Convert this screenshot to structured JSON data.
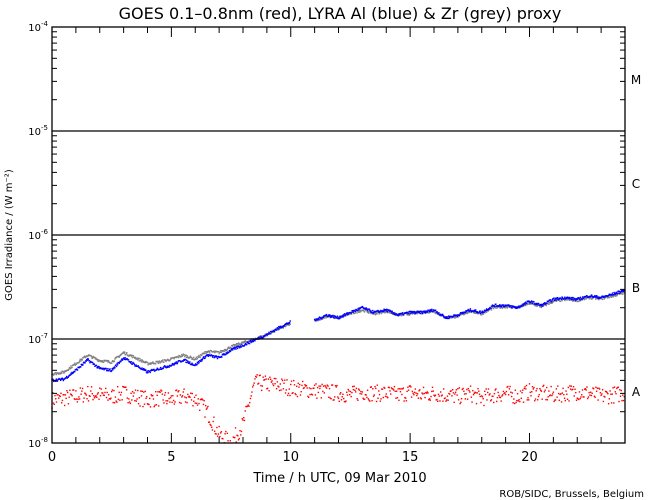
{
  "chart_data": {
    "type": "scatter",
    "title": "GOES 0.1–0.8nm (red), LYRA Al (blue) & Zr (grey) proxy",
    "xlabel": "Time / h UTC, 09 Mar 2010",
    "ylabel": "GOES Irradiance / (W m⁻²)",
    "credit": "ROB/SIDC, Brussels, Belgium",
    "xlim": [
      0,
      24
    ],
    "ylim": [
      1e-08,
      0.0001
    ],
    "yscale": "log",
    "x_ticks": [
      "0",
      "5",
      "10",
      "15",
      "20"
    ],
    "y_ticks": [
      {
        "base": "10",
        "exp": "-4"
      },
      {
        "base": "10",
        "exp": "-5"
      },
      {
        "base": "10",
        "exp": "-6"
      },
      {
        "base": "10",
        "exp": "-7"
      },
      {
        "base": "10",
        "exp": "-8"
      }
    ],
    "flare_classes": [
      "M",
      "C",
      "B",
      "A"
    ],
    "x": [
      0,
      0.5,
      1,
      1.5,
      2,
      2.5,
      3,
      3.5,
      4,
      4.5,
      5,
      5.5,
      6,
      6.5,
      7,
      7.5,
      8,
      8.5,
      9,
      9.5,
      10,
      10.5,
      11,
      11.5,
      12,
      12.5,
      13,
      13.5,
      14,
      14.5,
      15,
      15.5,
      16,
      16.5,
      17,
      17.5,
      18,
      18.5,
      19,
      19.5,
      20,
      20.5,
      21,
      21.5,
      22,
      22.5,
      23,
      23.5,
      24
    ],
    "series": [
      {
        "name": "GOES 0.1-0.8nm",
        "color": "#ff0000",
        "values": [
          2.6e-08,
          2.7e-08,
          2.8e-08,
          3e-08,
          2.9e-08,
          2.8e-08,
          3e-08,
          2.8e-08,
          2.6e-08,
          2.7e-08,
          2.6e-08,
          2.8e-08,
          2.7e-08,
          2e-08,
          1.2e-08,
          1e-08,
          1.5e-08,
          3.8e-08,
          3.7e-08,
          3.6e-08,
          3.4e-08,
          3.3e-08,
          3.2e-08,
          3.1e-08,
          3e-08,
          2.9e-08,
          3.1e-08,
          3e-08,
          3e-08,
          2.9e-08,
          3.1e-08,
          2.9e-08,
          3e-08,
          2.9e-08,
          2.8e-08,
          3e-08,
          2.7e-08,
          2.9e-08,
          3e-08,
          2.8e-08,
          3.1e-08,
          3e-08,
          2.9e-08,
          3e-08,
          3.1e-08,
          3e-08,
          2.8e-08,
          2.9e-08,
          3e-08
        ]
      },
      {
        "name": "LYRA Zr proxy",
        "color": "#808080",
        "values": [
          4.6e-08,
          4.8e-08,
          5.8e-08,
          7e-08,
          6.2e-08,
          6e-08,
          7.4e-08,
          6.6e-08,
          5.8e-08,
          6e-08,
          6.4e-08,
          7e-08,
          6.4e-08,
          7.6e-08,
          7.4e-08,
          8.4e-08,
          9.2e-08,
          1e-07,
          1.1e-07,
          1.25e-07,
          1.4e-07,
          null,
          1.5e-07,
          1.65e-07,
          1.6e-07,
          1.75e-07,
          1.9e-07,
          1.75e-07,
          1.85e-07,
          1.7e-07,
          1.75e-07,
          1.8e-07,
          1.85e-07,
          1.6e-07,
          1.65e-07,
          1.85e-07,
          1.75e-07,
          2e-07,
          2.05e-07,
          2e-07,
          2.2e-07,
          2.05e-07,
          2.3e-07,
          2.4e-07,
          2.35e-07,
          2.5e-07,
          2.45e-07,
          2.6e-07,
          2.8e-07
        ]
      },
      {
        "name": "LYRA Al proxy",
        "color": "#0000ff",
        "values": [
          4e-08,
          4.1e-08,
          5e-08,
          6.3e-08,
          5.2e-08,
          5e-08,
          6.6e-08,
          5.6e-08,
          4.8e-08,
          5.2e-08,
          5.6e-08,
          6.3e-08,
          5.6e-08,
          7e-08,
          6.6e-08,
          7.8e-08,
          8.7e-08,
          9.8e-08,
          1.1e-07,
          1.28e-07,
          1.46e-07,
          null,
          1.5e-07,
          1.7e-07,
          1.6e-07,
          1.8e-07,
          2e-07,
          1.8e-07,
          1.9e-07,
          1.7e-07,
          1.8e-07,
          1.8e-07,
          1.9e-07,
          1.6e-07,
          1.7e-07,
          1.9e-07,
          1.8e-07,
          2.1e-07,
          2.1e-07,
          2e-07,
          2.3e-07,
          2.1e-07,
          2.4e-07,
          2.5e-07,
          2.4e-07,
          2.6e-07,
          2.5e-07,
          2.7e-07,
          2.95e-07
        ]
      }
    ],
    "grid": "horizontal lines at class boundaries",
    "legend": "in title"
  }
}
